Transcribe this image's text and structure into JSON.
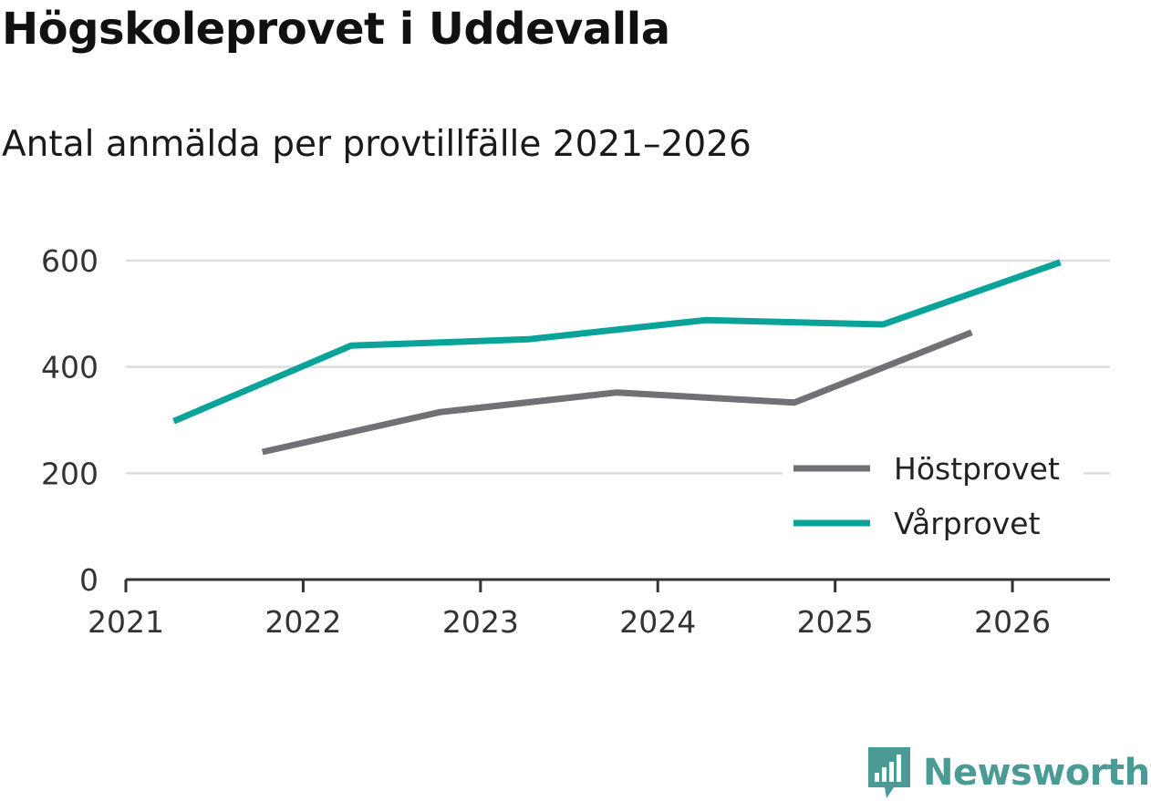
{
  "title": "Högskoleprovet i Uddevalla",
  "subtitle": "Antal anmälda per provtillfälle 2021–2026",
  "brand": {
    "name": "Newsworthy"
  },
  "colors": {
    "host": "#717074",
    "var": "#09a39a",
    "grid": "#dddddd",
    "axis": "#333333",
    "brand": "#4a9a96"
  },
  "chart_data": {
    "type": "line",
    "title": "Högskoleprovet i Uddevalla",
    "subtitle": "Antal anmälda per provtillfälle 2021–2026",
    "xlabel": "",
    "ylabel": "",
    "ylim": [
      0,
      600
    ],
    "xlim": [
      2021,
      2026.55
    ],
    "yticks": [
      0,
      200,
      400,
      600
    ],
    "xticks": [
      2021,
      2022,
      2023,
      2024,
      2025,
      2026
    ],
    "grid": true,
    "legend_position": "bottom-right",
    "series": [
      {
        "name": "Höstprovet",
        "color": "#717074",
        "x": [
          2021.77,
          2022.77,
          2023.77,
          2024.77,
          2025.77
        ],
        "y": [
          240,
          315,
          352,
          333,
          465
        ]
      },
      {
        "name": "Vårprovet",
        "color": "#09a39a",
        "x": [
          2021.27,
          2022.27,
          2023.27,
          2024.27,
          2025.27,
          2026.27
        ],
        "y": [
          298,
          440,
          452,
          488,
          480,
          597
        ]
      }
    ]
  }
}
